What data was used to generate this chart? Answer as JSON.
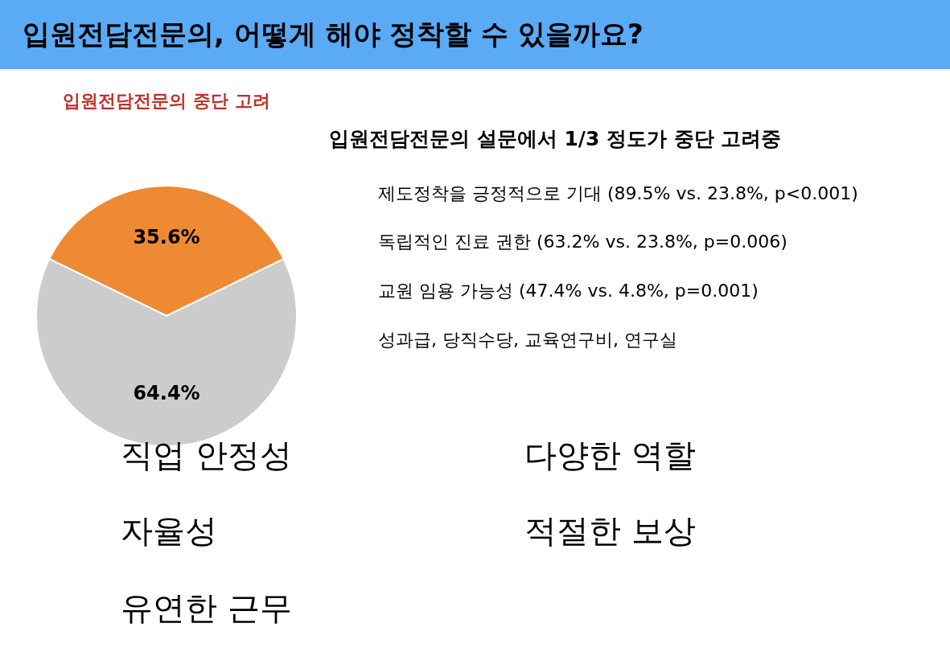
{
  "chart_data": {
    "type": "pie",
    "title": "입원전담전문의, 어떻게 해야 정착할 수 있을까요?",
    "subtitle": "입원전담전문의 중단 고려",
    "categories": [
      null,
      null
    ],
    "values": [
      35.6,
      64.4
    ],
    "colors": [
      "#ef8a34",
      "#cccccc"
    ],
    "value_labels": [
      "35.6%",
      "64.4%"
    ],
    "annotations": [
      "입원전담전문의 설문에서 1/3 정도가 중단 고려중",
      "제도정착을 긍정적으로 기대 (89.5% vs. 23.8%, p<0.001)",
      "독립적인 진료 권한 (63.2% vs. 23.8%, p=0.006)",
      "교원 임용 가능성 (47.4% vs. 4.8%, p=0.001)",
      "성과급, 당직수당, 교육연구비, 연구실",
      "직업 안정성",
      "다양한 역할",
      "자율성",
      "적절한 보상",
      "유연한 근무"
    ]
  }
}
